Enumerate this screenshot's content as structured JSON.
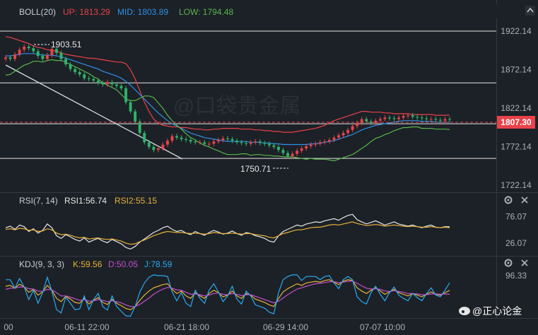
{
  "main": {
    "indicator": "BOLL(20)",
    "up_label": "UP: 1813.29",
    "mid_label": "MID: 1803.89",
    "low_label": "LOW: 1794.48",
    "price_ticks": [
      "1922.14",
      "1872.14",
      "1822.14",
      "1772.14",
      "1722.14"
    ],
    "current_price": "1807.30",
    "high_annotation": "1903.51",
    "low_annotation": "1750.71"
  },
  "rsi": {
    "indicator": "RSI(7, 14)",
    "rsi1_label": "RSI1:56.74",
    "rsi2_label": "RSI2:55.15",
    "ticks": [
      "76.07",
      "26.07"
    ]
  },
  "kdj": {
    "indicator": "KDJ(9, 3, 3)",
    "k_label": "K:59.56",
    "d_label": "D:50.05",
    "j_label": "J:78.59",
    "ticks": [
      "96.33"
    ]
  },
  "time_axis": [
    "00",
    "06-11 22:00",
    "06-21 18:00",
    "06-29 14:00",
    "07-07 10:00"
  ],
  "watermark": "@正心论金",
  "colors": {
    "up": "#e8424a",
    "down": "#2fb36a",
    "mid": "#2f8fe6",
    "low": "#58b64c",
    "rsi1": "#e6e6e6",
    "rsi2": "#e6b23a",
    "k": "#e6b23a",
    "d": "#c24fd0",
    "j": "#2aa9f0"
  },
  "chart_data": [
    {
      "type": "candlestick",
      "indicator": "BOLL(20)",
      "y_axis_ticks": [
        1922.14,
        1872.14,
        1822.14,
        1772.14,
        1722.14
      ],
      "ylim": [
        1715,
        1935
      ],
      "current_price": 1807.3,
      "annotations": [
        {
          "label": "1903.51",
          "value": 1903.51
        },
        {
          "label": "1750.71",
          "value": 1750.71
        }
      ],
      "horizontal_lines": [
        1922.14,
        1855.0,
        1802.0,
        1757.0
      ],
      "x_labels": [
        "00",
        "06-11 22:00",
        "06-21 18:00",
        "06-29 14:00",
        "07-07 10:00"
      ],
      "close": [
        1888,
        1886,
        1892,
        1898,
        1902,
        1900,
        1896,
        1890,
        1886,
        1891,
        1899,
        1894,
        1886,
        1879,
        1873,
        1869,
        1866,
        1861,
        1860,
        1858,
        1855,
        1853,
        1856,
        1853,
        1851,
        1848,
        1830,
        1818,
        1805,
        1790,
        1778,
        1772,
        1768,
        1770,
        1775,
        1780,
        1786,
        1784,
        1782,
        1781,
        1779,
        1778,
        1778,
        1776,
        1776,
        1779,
        1781,
        1783,
        1782,
        1780,
        1778,
        1777,
        1776,
        1778,
        1779,
        1777,
        1776,
        1774,
        1772,
        1768,
        1764,
        1760,
        1763,
        1767,
        1770,
        1773,
        1775,
        1776,
        1778,
        1779,
        1781,
        1784,
        1787,
        1790,
        1794,
        1799,
        1803,
        1808,
        1805,
        1803,
        1806,
        1808,
        1810,
        1809,
        1808,
        1810,
        1812,
        1813,
        1811,
        1810,
        1809,
        1808,
        1808,
        1807,
        1806,
        1808,
        1807.3
      ],
      "bands": {
        "up": [
          1915,
          1914,
          1912,
          1910,
          1908,
          1906,
          1903,
          1901,
          1900,
          1898,
          1897,
          1896,
          1894,
          1892,
          1891,
          1890,
          1889,
          1888,
          1887,
          1887,
          1886,
          1885,
          1884,
          1883,
          1882,
          1882,
          1880,
          1872,
          1860,
          1845,
          1830,
          1818,
          1808,
          1803,
          1800,
          1799,
          1798,
          1798,
          1797,
          1797,
          1796,
          1795,
          1795,
          1794,
          1794,
          1795,
          1795,
          1796,
          1796,
          1796,
          1796,
          1795,
          1795,
          1795,
          1794,
          1794,
          1793,
          1793,
          1792,
          1792,
          1791,
          1791,
          1791,
          1792,
          1793,
          1794,
          1795,
          1796,
          1798,
          1800,
          1803,
          1806,
          1808,
          1810,
          1812,
          1814,
          1816,
          1818,
          1818,
          1817,
          1817,
          1817,
          1816,
          1816,
          1815,
          1815,
          1815,
          1815,
          1814,
          1814,
          1814,
          1814,
          1814,
          1813,
          1813,
          1813,
          1813.29
        ],
        "mid": [
          1890,
          1890,
          1891,
          1892,
          1893,
          1893,
          1893,
          1892,
          1891,
          1891,
          1891,
          1890,
          1889,
          1887,
          1885,
          1883,
          1881,
          1879,
          1877,
          1875,
          1873,
          1870,
          1868,
          1866,
          1864,
          1861,
          1857,
          1852,
          1846,
          1840,
          1834,
          1828,
          1822,
          1816,
          1811,
          1806,
          1802,
          1799,
          1796,
          1793,
          1790,
          1788,
          1786,
          1784,
          1783,
          1782,
          1781,
          1780,
          1779,
          1779,
          1779,
          1779,
          1779,
          1778,
          1778,
          1778,
          1777,
          1777,
          1776,
          1776,
          1775,
          1775,
          1775,
          1775,
          1775,
          1775,
          1776,
          1776,
          1777,
          1778,
          1779,
          1780,
          1782,
          1784,
          1786,
          1788,
          1791,
          1794,
          1796,
          1798,
          1800,
          1801,
          1802,
          1803,
          1804,
          1805,
          1806,
          1806,
          1806,
          1806,
          1805,
          1805,
          1805,
          1804,
          1804,
          1804,
          1803.89
        ],
        "low": [
          1865,
          1866,
          1870,
          1874,
          1878,
          1880,
          1883,
          1883,
          1882,
          1884,
          1885,
          1884,
          1884,
          1882,
          1879,
          1876,
          1873,
          1870,
          1867,
          1863,
          1860,
          1855,
          1852,
          1849,
          1846,
          1840,
          1834,
          1832,
          1832,
          1835,
          1838,
          1838,
          1836,
          1829,
          1822,
          1813,
          1806,
          1800,
          1795,
          1789,
          1784,
          1781,
          1777,
          1774,
          1772,
          1769,
          1767,
          1764,
          1762,
          1762,
          1762,
          1763,
          1763,
          1761,
          1762,
          1762,
          1761,
          1761,
          1760,
          1760,
          1759,
          1759,
          1759,
          1758,
          1757,
          1756,
          1757,
          1756,
          1756,
          1756,
          1755,
          1754,
          1756,
          1758,
          1760,
          1762,
          1766,
          1770,
          1774,
          1779,
          1783,
          1785,
          1788,
          1790,
          1793,
          1795,
          1797,
          1797,
          1798,
          1798,
          1796,
          1796,
          1796,
          1795,
          1795,
          1795,
          1794.48
        ]
      }
    },
    {
      "type": "line",
      "indicator": "RSI(7, 14)",
      "y_axis_ticks": [
        76.07,
        26.07
      ],
      "ylim": [
        5,
        95
      ],
      "series": [
        {
          "name": "RSI1",
          "values": [
            55,
            58,
            52,
            60,
            57,
            48,
            53,
            45,
            50,
            62,
            55,
            40,
            35,
            42,
            38,
            33,
            30,
            36,
            28,
            32,
            35,
            30,
            27,
            33,
            29,
            25,
            18,
            15,
            20,
            28,
            34,
            40,
            46,
            50,
            55,
            58,
            52,
            48,
            50,
            45,
            42,
            48,
            44,
            41,
            46,
            50,
            47,
            43,
            45,
            49,
            44,
            41,
            46,
            44,
            40,
            38,
            35,
            30,
            28,
            40,
            48,
            52,
            56,
            60,
            58,
            62,
            64,
            66,
            65,
            68,
            70,
            72,
            69,
            74,
            78,
            80,
            70,
            66,
            62,
            65,
            68,
            64,
            60,
            63,
            66,
            62,
            60,
            58,
            60,
            57,
            55,
            58,
            60,
            56,
            55,
            57,
            56.74
          ]
        },
        {
          "name": "RSI2",
          "values": [
            52,
            53,
            51,
            54,
            53,
            50,
            51,
            48,
            49,
            53,
            51,
            45,
            42,
            43,
            41,
            38,
            36,
            37,
            34,
            35,
            36,
            34,
            33,
            34,
            32,
            30,
            26,
            24,
            25,
            29,
            32,
            36,
            40,
            43,
            46,
            48,
            47,
            46,
            46,
            45,
            44,
            45,
            44,
            43,
            44,
            46,
            45,
            44,
            44,
            45,
            44,
            43,
            44,
            44,
            42,
            41,
            40,
            37,
            36,
            40,
            44,
            46,
            49,
            51,
            51,
            53,
            55,
            56,
            56,
            58,
            60,
            61,
            60,
            62,
            64,
            66,
            63,
            61,
            59,
            60,
            61,
            60,
            58,
            59,
            60,
            59,
            58,
            57,
            58,
            57,
            56,
            56,
            57,
            56,
            55,
            56,
            55.15
          ]
        }
      ]
    },
    {
      "type": "line",
      "indicator": "KDJ(9, 3, 3)",
      "y_axis_ticks": [
        96.33
      ],
      "ylim": [
        -5,
        110
      ],
      "series": [
        {
          "name": "K",
          "values": [
            70,
            72,
            65,
            75,
            68,
            55,
            62,
            48,
            56,
            72,
            60,
            40,
            32,
            45,
            38,
            30,
            28,
            40,
            26,
            35,
            42,
            30,
            25,
            38,
            28,
            22,
            15,
            12,
            20,
            35,
            48,
            58,
            66,
            70,
            74,
            76,
            62,
            52,
            58,
            46,
            40,
            54,
            46,
            40,
            52,
            60,
            54,
            44,
            48,
            58,
            46,
            40,
            52,
            48,
            38,
            34,
            30,
            24,
            20,
            40,
            56,
            64,
            70,
            76,
            72,
            78,
            80,
            82,
            80,
            84,
            86,
            80,
            74,
            82,
            86,
            84,
            66,
            58,
            52,
            60,
            66,
            58,
            50,
            56,
            62,
            54,
            50,
            46,
            52,
            48,
            44,
            50,
            56,
            50,
            48,
            54,
            59.56
          ]
        },
        {
          "name": "D",
          "values": [
            62,
            65,
            65,
            68,
            68,
            64,
            63,
            58,
            57,
            62,
            61,
            54,
            46,
            46,
            43,
            39,
            35,
            37,
            33,
            34,
            37,
            35,
            32,
            34,
            32,
            29,
            24,
            20,
            20,
            25,
            33,
            41,
            50,
            57,
            63,
            67,
            65,
            61,
            60,
            55,
            50,
            51,
            49,
            46,
            48,
            52,
            53,
            50,
            49,
            52,
            50,
            47,
            49,
            49,
            45,
            41,
            37,
            33,
            29,
            33,
            41,
            49,
            56,
            63,
            66,
            70,
            73,
            76,
            77,
            79,
            81,
            81,
            79,
            80,
            82,
            83,
            77,
            71,
            65,
            63,
            64,
            62,
            58,
            57,
            59,
            57,
            55,
            52,
            52,
            51,
            49,
            49,
            51,
            51,
            50,
            51,
            50.05
          ]
        },
        {
          "name": "J",
          "values": [
            86,
            86,
            65,
            89,
            68,
            37,
            60,
            28,
            54,
            92,
            58,
            12,
            4,
            43,
            28,
            12,
            14,
            46,
            12,
            37,
            52,
            20,
            11,
            46,
            20,
            8,
            -3,
            -4,
            20,
            55,
            78,
            92,
            98,
            96,
            96,
            94,
            56,
            34,
            54,
            28,
            20,
            60,
            40,
            28,
            60,
            76,
            56,
            32,
            46,
            70,
            38,
            26,
            58,
            46,
            24,
            20,
            16,
            6,
            2,
            54,
            86,
            94,
            98,
            98,
            84,
            94,
            94,
            94,
            86,
            94,
            96,
            78,
            64,
            86,
            94,
            86,
            44,
            32,
            26,
            54,
            70,
            50,
            34,
            54,
            68,
            48,
            40,
            34,
            52,
            42,
            34,
            52,
            66,
            48,
            44,
            60,
            78.59
          ]
        }
      ]
    }
  ]
}
